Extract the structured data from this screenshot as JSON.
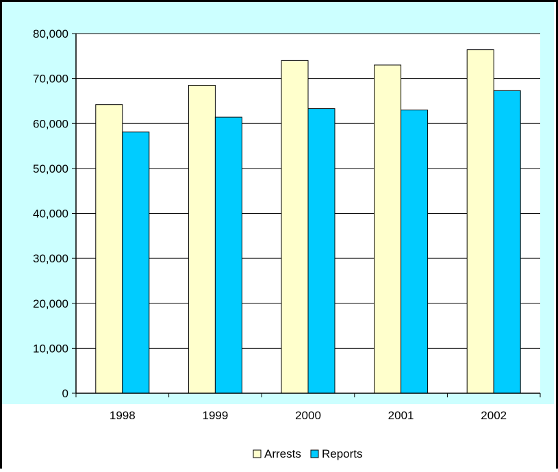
{
  "colors": {
    "background": "#ffffff",
    "plot_area": "#ccffff",
    "border": "#000000",
    "gridline": "#000000"
  },
  "legend": {
    "arrests_label": "Arrests",
    "reports_label": "Reports"
  },
  "chart_data": {
    "type": "bar",
    "title": "",
    "xlabel": "",
    "ylabel": "",
    "categories": [
      "1998",
      "1999",
      "2000",
      "2001",
      "2002"
    ],
    "ylim": [
      0,
      80000
    ],
    "yticks": [
      "0",
      "10,000",
      "20,000",
      "30,000",
      "40,000",
      "50,000",
      "60,000",
      "70,000",
      "80,000"
    ],
    "grid": true,
    "legend_position": "bottom",
    "series": [
      {
        "name": "Arrests",
        "color": "#ffffcc",
        "values": [
          64200,
          68500,
          74000,
          73000,
          76400
        ]
      },
      {
        "name": "Reports",
        "color": "#00ccff",
        "values": [
          58100,
          61400,
          63300,
          63000,
          67300
        ]
      }
    ]
  }
}
